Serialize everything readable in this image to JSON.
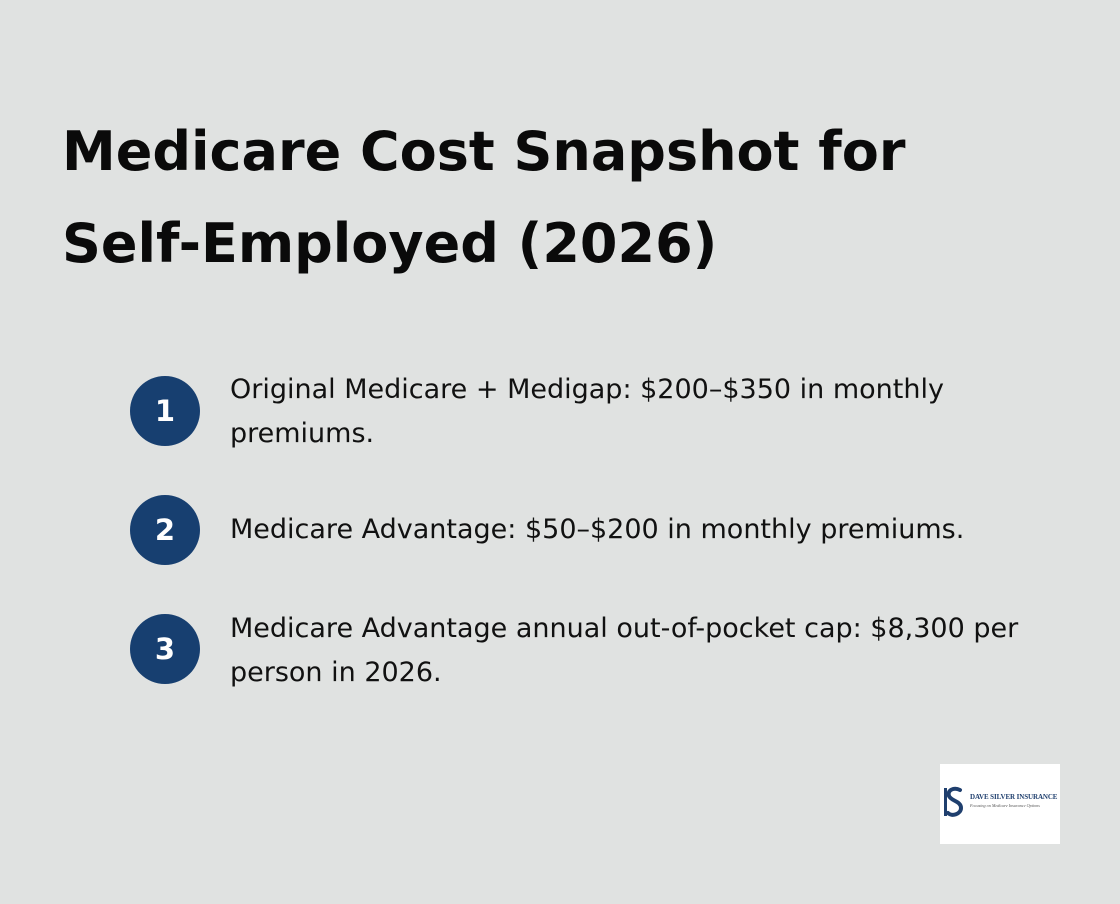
{
  "title_lines": [
    "Medicare Cost Snapshot for",
    "Self-Employed (2026)"
  ],
  "items": [
    {
      "number": "1",
      "text": "Original Medicare + Medigap: $200–$350 in monthly premiums."
    },
    {
      "number": "2",
      "text": "Medicare Advantage: $50–$200 in monthly premiums."
    },
    {
      "number": "3",
      "text": "Medicare Advantage annual out-of-pocket cap: $8,300 per person in 2026."
    }
  ],
  "logo": {
    "name": "DAVE SILVER INSURANCE",
    "tagline": "Focusing on Medicare Insurance Options",
    "icon": "s-monogram-icon"
  },
  "colors": {
    "background": "#e0e2e1",
    "badge": "#173f70",
    "title": "#0a0a0a",
    "text": "#111111"
  }
}
